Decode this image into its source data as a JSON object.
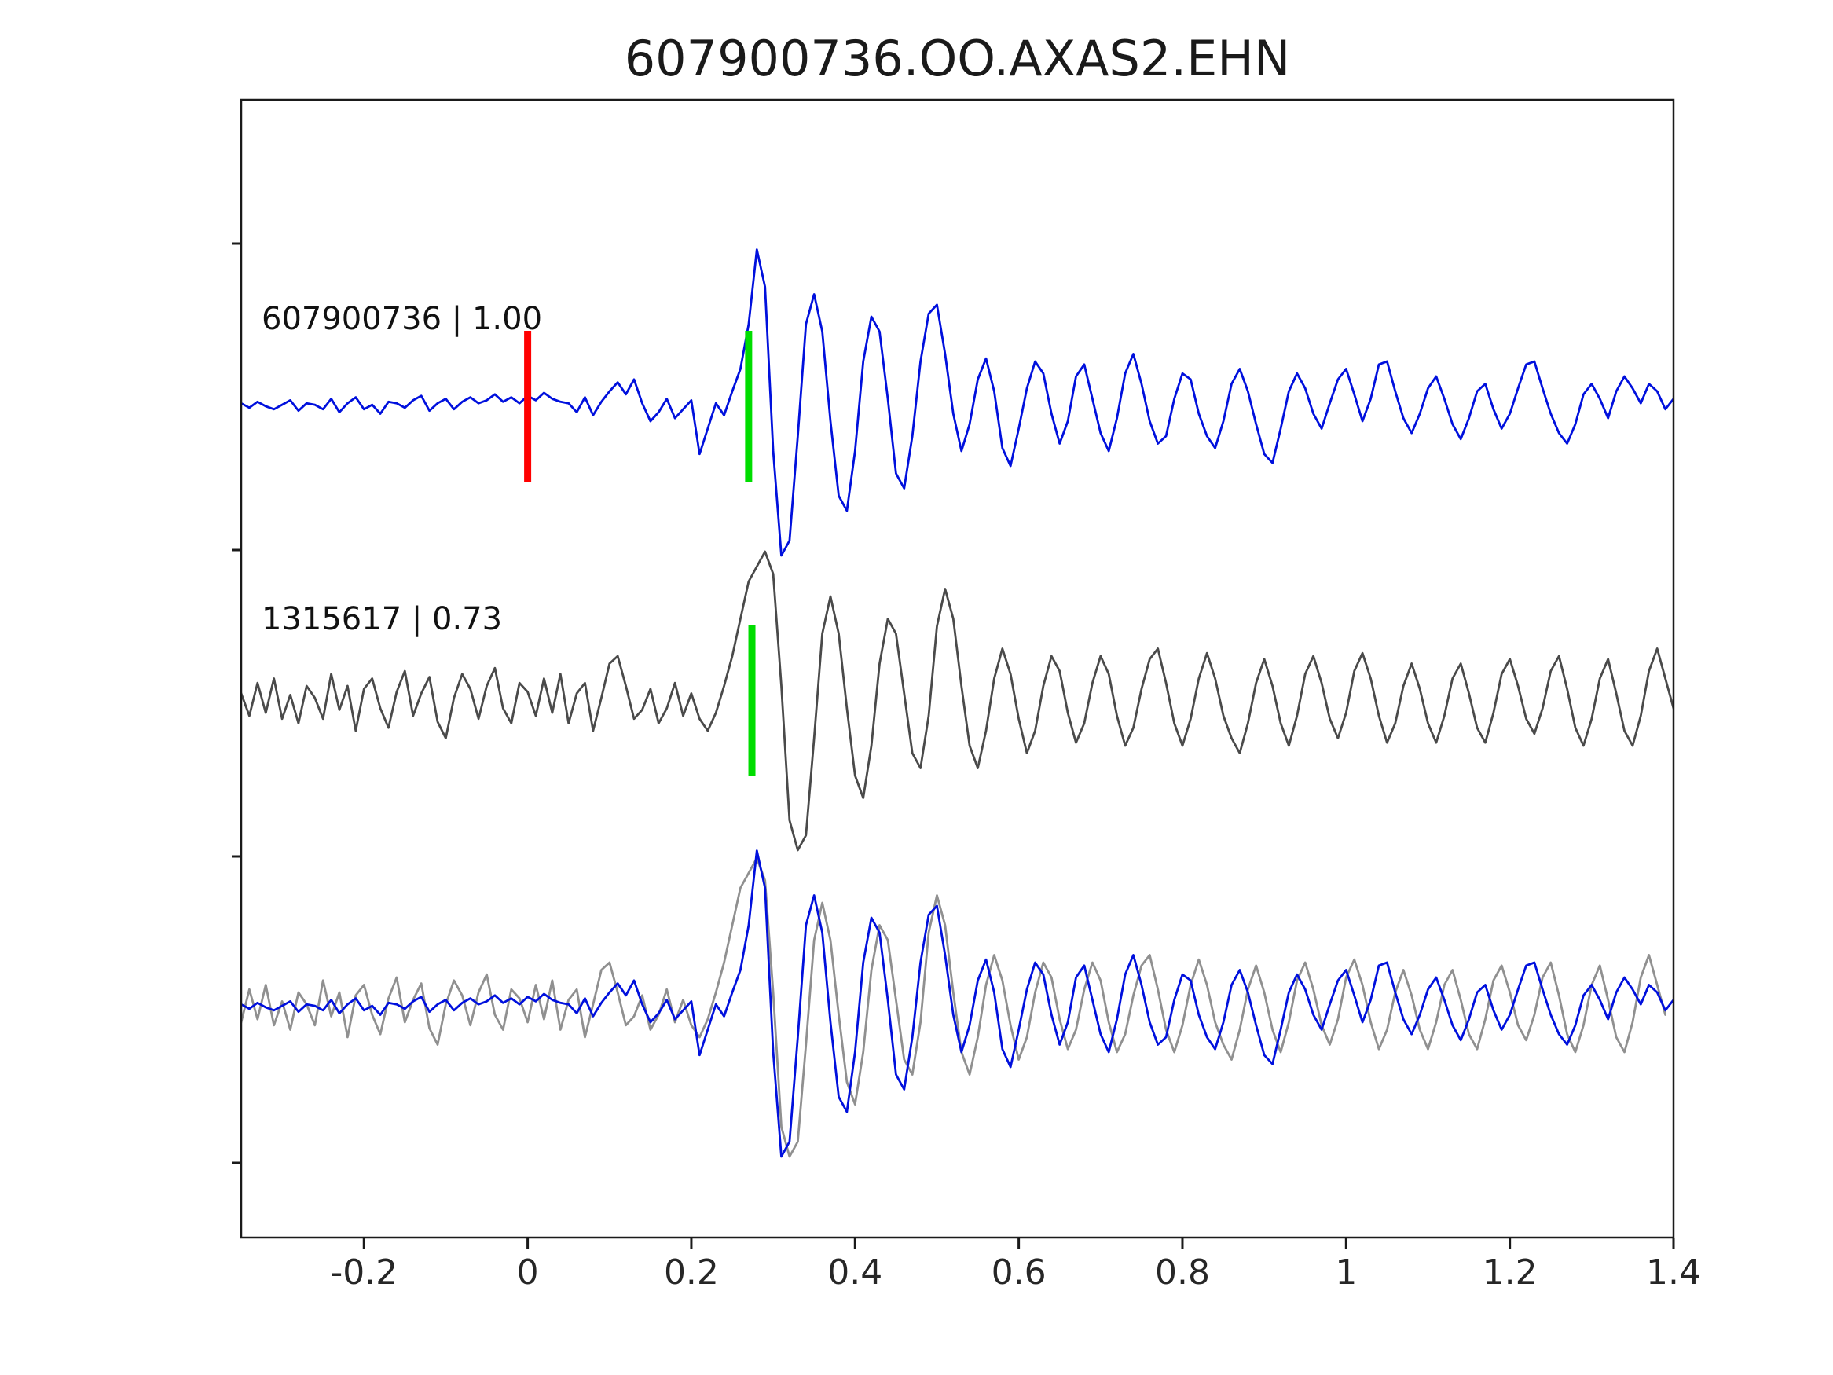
{
  "title": "607900736.OO.AXAS2.EHN",
  "chart_data": {
    "type": "line",
    "title": "607900736.OO.AXAS2.EHN",
    "xlabel": "",
    "ylabel": "",
    "grid": false,
    "legend": null,
    "xlim": [
      -0.35,
      1.4
    ],
    "xticks": [
      -0.2,
      0,
      0.2,
      0.4,
      0.6,
      0.8,
      1,
      1.2,
      1.4
    ],
    "xtick_labels": [
      "-0.2",
      "0",
      "0.2",
      "0.4",
      "0.6",
      "0.8",
      "1",
      "1.2",
      "1.4"
    ],
    "x_start": -0.35,
    "dx": 0.01,
    "panels": [
      {
        "label": "607900736 | 1.00",
        "traces": [
          {
            "series": "reference",
            "color": "#0010dd",
            "shift": 0
          }
        ],
        "markers": [
          {
            "x": 0,
            "color": "#ff0000",
            "name": "pick-marker-red"
          },
          {
            "x": 0.27,
            "color": "#00dd00",
            "name": "pick-marker-green"
          }
        ]
      },
      {
        "label": "1315617 | 0.73",
        "traces": [
          {
            "series": "match",
            "color": "#4a4a4a",
            "shift": 0
          }
        ],
        "markers": [
          {
            "x": 0.274,
            "color": "#00dd00",
            "name": "pick-marker-green"
          }
        ]
      },
      {
        "label": "",
        "traces": [
          {
            "series": "match",
            "color": "#909090",
            "shift": -0.01
          },
          {
            "series": "reference",
            "color": "#0010dd",
            "shift": 0
          }
        ],
        "markers": []
      }
    ],
    "series": {
      "reference": {
        "name": "607900736",
        "color": "#0010dd",
        "values": [
          0.02,
          -0.01,
          0.03,
          0.0,
          -0.02,
          0.01,
          0.04,
          -0.03,
          0.02,
          0.01,
          -0.02,
          0.05,
          -0.04,
          0.02,
          0.06,
          -0.02,
          0.01,
          -0.05,
          0.03,
          0.02,
          -0.01,
          0.04,
          0.07,
          -0.03,
          0.02,
          0.05,
          -0.02,
          0.03,
          0.06,
          0.02,
          0.04,
          0.08,
          0.03,
          0.06,
          0.02,
          0.07,
          0.04,
          0.09,
          0.05,
          0.03,
          0.02,
          -0.04,
          0.06,
          -0.06,
          0.03,
          0.1,
          0.16,
          0.08,
          0.18,
          0.02,
          -0.1,
          -0.04,
          0.05,
          -0.08,
          -0.02,
          0.04,
          -0.32,
          -0.15,
          0.02,
          -0.06,
          0.1,
          0.25,
          0.55,
          1.05,
          0.8,
          -0.3,
          -1.0,
          -0.9,
          -0.2,
          0.55,
          0.75,
          0.5,
          -0.1,
          -0.6,
          -0.7,
          -0.3,
          0.3,
          0.6,
          0.5,
          0.05,
          -0.45,
          -0.55,
          -0.2,
          0.3,
          0.62,
          0.68,
          0.35,
          -0.05,
          -0.3,
          -0.12,
          0.18,
          0.32,
          0.1,
          -0.28,
          -0.4,
          -0.15,
          0.12,
          0.3,
          0.22,
          -0.05,
          -0.25,
          -0.1,
          0.2,
          0.28,
          0.05,
          -0.18,
          -0.3,
          -0.08,
          0.22,
          0.35,
          0.15,
          -0.1,
          -0.25,
          -0.2,
          0.05,
          0.22,
          0.18,
          -0.05,
          -0.2,
          -0.28,
          -0.1,
          0.15,
          0.25,
          0.1,
          -0.12,
          -0.32,
          -0.38,
          -0.15,
          0.1,
          0.22,
          0.12,
          -0.05,
          -0.15,
          0.02,
          0.18,
          0.25,
          0.08,
          -0.1,
          0.05,
          0.28,
          0.3,
          0.1,
          -0.08,
          -0.18,
          -0.05,
          0.12,
          0.2,
          0.05,
          -0.12,
          -0.22,
          -0.08,
          0.1,
          0.15,
          -0.02,
          -0.15,
          -0.05,
          0.12,
          0.28,
          0.3,
          0.12,
          -0.05,
          -0.18,
          -0.25,
          -0.12,
          0.08,
          0.15,
          0.05,
          -0.08,
          0.1,
          0.2,
          0.12,
          0.02,
          0.15,
          0.1,
          -0.02,
          0.05
        ]
      },
      "match": {
        "name": "1315617",
        "color": "#4a4a4a",
        "values": [
          0.05,
          -0.1,
          0.12,
          -0.08,
          0.15,
          -0.12,
          0.04,
          -0.15,
          0.1,
          0.02,
          -0.12,
          0.18,
          -0.06,
          0.1,
          -0.2,
          0.08,
          0.15,
          -0.05,
          -0.18,
          0.06,
          0.2,
          -0.1,
          0.05,
          0.16,
          -0.14,
          -0.25,
          0.02,
          0.18,
          0.08,
          -0.12,
          0.1,
          0.22,
          -0.05,
          -0.15,
          0.12,
          0.06,
          -0.1,
          0.15,
          -0.08,
          0.18,
          -0.15,
          0.05,
          0.12,
          -0.2,
          0.02,
          0.25,
          0.3,
          0.1,
          -0.12,
          -0.06,
          0.08,
          -0.15,
          -0.05,
          0.12,
          -0.1,
          0.05,
          -0.12,
          -0.2,
          -0.08,
          0.1,
          0.3,
          0.55,
          0.8,
          0.9,
          1.0,
          0.85,
          0.1,
          -0.8,
          -1.0,
          -0.9,
          -0.25,
          0.45,
          0.7,
          0.45,
          -0.05,
          -0.5,
          -0.65,
          -0.3,
          0.25,
          0.55,
          0.45,
          0.05,
          -0.35,
          -0.45,
          -0.1,
          0.5,
          0.75,
          0.55,
          0.1,
          -0.3,
          -0.45,
          -0.2,
          0.15,
          0.35,
          0.18,
          -0.12,
          -0.35,
          -0.2,
          0.1,
          0.3,
          0.2,
          -0.08,
          -0.28,
          -0.15,
          0.12,
          0.3,
          0.18,
          -0.1,
          -0.3,
          -0.18,
          0.08,
          0.28,
          0.35,
          0.12,
          -0.15,
          -0.3,
          -0.12,
          0.15,
          0.32,
          0.15,
          -0.1,
          -0.25,
          -0.35,
          -0.15,
          0.12,
          0.28,
          0.1,
          -0.15,
          -0.3,
          -0.1,
          0.18,
          0.3,
          0.12,
          -0.12,
          -0.25,
          -0.08,
          0.2,
          0.32,
          0.15,
          -0.1,
          -0.28,
          -0.15,
          0.1,
          0.25,
          0.08,
          -0.15,
          -0.28,
          -0.1,
          0.15,
          0.25,
          0.05,
          -0.18,
          -0.28,
          -0.08,
          0.18,
          0.28,
          0.1,
          -0.12,
          -0.22,
          -0.05,
          0.2,
          0.3,
          0.08,
          -0.18,
          -0.3,
          -0.12,
          0.15,
          0.28,
          0.05,
          -0.2,
          -0.3,
          -0.1,
          0.2,
          0.35,
          0.15,
          -0.05
        ]
      }
    }
  }
}
